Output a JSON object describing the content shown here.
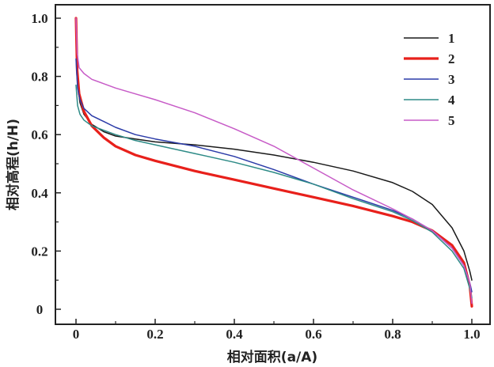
{
  "chart_data": {
    "type": "line",
    "xlabel": "相对面积(a/A)",
    "ylabel": "相对高程(h/H)",
    "xlim": [
      0,
      1.0
    ],
    "ylim": [
      0,
      1.0
    ],
    "x_ticks": [
      "0",
      "0.2",
      "0.4",
      "0.6",
      "0.8",
      "1.0"
    ],
    "y_ticks": [
      "0",
      "0.2",
      "0.4",
      "0.6",
      "0.8",
      "1.0"
    ],
    "legend_position": "top-right",
    "series": [
      {
        "name": "1",
        "color": "#1a1a1a",
        "x": [
          0.0,
          0.005,
          0.01,
          0.02,
          0.04,
          0.07,
          0.1,
          0.15,
          0.2,
          0.3,
          0.4,
          0.5,
          0.6,
          0.7,
          0.8,
          0.85,
          0.9,
          0.95,
          0.98,
          0.995,
          1.0
        ],
        "y": [
          0.95,
          0.76,
          0.71,
          0.67,
          0.635,
          0.61,
          0.595,
          0.585,
          0.575,
          0.565,
          0.55,
          0.53,
          0.505,
          0.475,
          0.435,
          0.405,
          0.36,
          0.28,
          0.2,
          0.13,
          0.1
        ]
      },
      {
        "name": "2",
        "color": "#e8201b",
        "x": [
          0.0,
          0.003,
          0.008,
          0.02,
          0.04,
          0.07,
          0.1,
          0.15,
          0.2,
          0.3,
          0.4,
          0.5,
          0.6,
          0.7,
          0.8,
          0.85,
          0.9,
          0.95,
          0.98,
          0.995,
          1.0
        ],
        "y": [
          1.0,
          0.82,
          0.74,
          0.68,
          0.63,
          0.59,
          0.56,
          0.53,
          0.51,
          0.475,
          0.445,
          0.415,
          0.385,
          0.355,
          0.32,
          0.3,
          0.27,
          0.22,
          0.16,
          0.08,
          0.01
        ]
      },
      {
        "name": "3",
        "color": "#2b3ba8",
        "x": [
          0.0,
          0.004,
          0.01,
          0.02,
          0.04,
          0.07,
          0.1,
          0.15,
          0.2,
          0.3,
          0.4,
          0.5,
          0.6,
          0.7,
          0.8,
          0.85,
          0.9,
          0.95,
          0.98,
          0.995,
          1.0
        ],
        "y": [
          0.86,
          0.76,
          0.72,
          0.69,
          0.665,
          0.645,
          0.625,
          0.6,
          0.585,
          0.56,
          0.525,
          0.48,
          0.43,
          0.385,
          0.34,
          0.31,
          0.27,
          0.21,
          0.15,
          0.09,
          0.06
        ]
      },
      {
        "name": "4",
        "color": "#2e8b87",
        "x": [
          0.0,
          0.004,
          0.01,
          0.02,
          0.04,
          0.07,
          0.1,
          0.15,
          0.2,
          0.3,
          0.4,
          0.5,
          0.6,
          0.7,
          0.8,
          0.85,
          0.9,
          0.95,
          0.98,
          0.995,
          1.0
        ],
        "y": [
          0.77,
          0.7,
          0.67,
          0.65,
          0.63,
          0.615,
          0.6,
          0.58,
          0.565,
          0.535,
          0.505,
          0.47,
          0.43,
          0.38,
          0.335,
          0.305,
          0.265,
          0.2,
          0.14,
          0.07,
          0.04
        ]
      },
      {
        "name": "5",
        "color": "#c75bc7",
        "x": [
          0.0,
          0.003,
          0.008,
          0.02,
          0.04,
          0.07,
          0.1,
          0.15,
          0.2,
          0.3,
          0.4,
          0.5,
          0.6,
          0.7,
          0.8,
          0.85,
          0.9,
          0.95,
          0.98,
          0.995,
          1.0
        ],
        "y": [
          1.0,
          0.88,
          0.83,
          0.81,
          0.79,
          0.775,
          0.76,
          0.74,
          0.72,
          0.675,
          0.62,
          0.56,
          0.485,
          0.41,
          0.345,
          0.31,
          0.27,
          0.21,
          0.15,
          0.09,
          0.02
        ]
      }
    ]
  }
}
